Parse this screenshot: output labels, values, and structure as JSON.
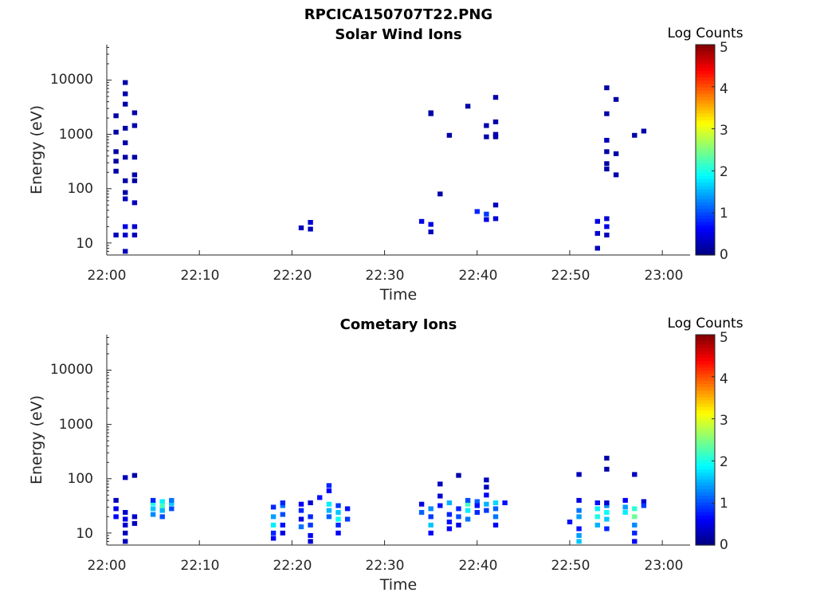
{
  "figure": {
    "title": "RPCICA150707T22.PNG"
  },
  "chart_data": [
    {
      "type": "heatmap",
      "title": "Solar Wind Ions",
      "xlabel": "Time",
      "ylabel": "Energy (eV)",
      "x_ticks": [
        "22:00",
        "22:10",
        "22:20",
        "22:30",
        "22:40",
        "22:50",
        "23:00"
      ],
      "x_range": [
        "22:00",
        "23:03"
      ],
      "y_ticks": [
        "10",
        "100",
        "1000",
        "10000"
      ],
      "y_range": [
        6,
        45000
      ],
      "y_scale": "log",
      "colorbar": {
        "label": "Log Counts",
        "ticks": [
          "0",
          "1",
          "2",
          "3",
          "4",
          "5"
        ],
        "range": [
          0,
          5
        ],
        "colormap": "jet"
      },
      "points": [
        {
          "t": "22:01",
          "e": 14,
          "c": 0.3
        },
        {
          "t": "22:02",
          "e": 20,
          "c": 0.5
        },
        {
          "t": "22:02",
          "e": 14,
          "c": 0.4
        },
        {
          "t": "22:02",
          "e": 7,
          "c": 0.3
        },
        {
          "t": "22:03",
          "e": 20,
          "c": 0.4
        },
        {
          "t": "22:03",
          "e": 14,
          "c": 0.3
        },
        {
          "t": "22:01",
          "e": 1100,
          "c": 0.2
        },
        {
          "t": "22:01",
          "e": 2200,
          "c": 0.2
        },
        {
          "t": "22:01",
          "e": 480,
          "c": 0.2
        },
        {
          "t": "22:01",
          "e": 320,
          "c": 0.2
        },
        {
          "t": "22:01",
          "e": 210,
          "c": 0.2
        },
        {
          "t": "22:02",
          "e": 9000,
          "c": 0.2
        },
        {
          "t": "22:02",
          "e": 3600,
          "c": 0.2
        },
        {
          "t": "22:02",
          "e": 1300,
          "c": 0.2
        },
        {
          "t": "22:02",
          "e": 380,
          "c": 0.2
        },
        {
          "t": "22:02",
          "e": 140,
          "c": 0.2
        },
        {
          "t": "22:02",
          "e": 65,
          "c": 0.3
        },
        {
          "t": "22:02",
          "e": 5600,
          "c": 0.2
        },
        {
          "t": "22:03",
          "e": 1450,
          "c": 0.2
        },
        {
          "t": "22:03",
          "e": 2500,
          "c": 0.2
        },
        {
          "t": "22:03",
          "e": 180,
          "c": 0.2
        },
        {
          "t": "22:03",
          "e": 55,
          "c": 0.3
        },
        {
          "t": "22:03",
          "e": 380,
          "c": 0.2
        },
        {
          "t": "22:03",
          "e": 140,
          "c": 0.2
        },
        {
          "t": "22:02",
          "e": 700,
          "c": 0.2
        },
        {
          "t": "22:02",
          "e": 85,
          "c": 0.2
        },
        {
          "t": "22:21",
          "e": 19,
          "c": 0.3
        },
        {
          "t": "22:22",
          "e": 24,
          "c": 0.4
        },
        {
          "t": "22:22",
          "e": 18,
          "c": 0.3
        },
        {
          "t": "22:34",
          "e": 25,
          "c": 0.5
        },
        {
          "t": "22:35",
          "e": 22,
          "c": 0.5
        },
        {
          "t": "22:35",
          "e": 16,
          "c": 0.3
        },
        {
          "t": "22:35",
          "e": 2500,
          "c": 0.2
        },
        {
          "t": "22:35",
          "e": 2400,
          "c": 0.2
        },
        {
          "t": "22:36",
          "e": 80,
          "c": 0.2
        },
        {
          "t": "22:37",
          "e": 960,
          "c": 0.2
        },
        {
          "t": "22:39",
          "e": 3300,
          "c": 0.2
        },
        {
          "t": "22:40",
          "e": 38,
          "c": 0.8
        },
        {
          "t": "22:41",
          "e": 34,
          "c": 0.9
        },
        {
          "t": "22:41",
          "e": 27,
          "c": 0.5
        },
        {
          "t": "22:42",
          "e": 28,
          "c": 0.4
        },
        {
          "t": "22:42",
          "e": 50,
          "c": 0.3
        },
        {
          "t": "22:41",
          "e": 900,
          "c": 0.2
        },
        {
          "t": "22:41",
          "e": 1450,
          "c": 0.2
        },
        {
          "t": "22:42",
          "e": 4800,
          "c": 0.2
        },
        {
          "t": "22:42",
          "e": 900,
          "c": 0.2
        },
        {
          "t": "22:42",
          "e": 1700,
          "c": 0.2
        },
        {
          "t": "22:42",
          "e": 1000,
          "c": 0.2
        },
        {
          "t": "22:53",
          "e": 25,
          "c": 0.5
        },
        {
          "t": "22:53",
          "e": 15,
          "c": 0.4
        },
        {
          "t": "22:53",
          "e": 8,
          "c": 0.3
        },
        {
          "t": "22:54",
          "e": 28,
          "c": 0.4
        },
        {
          "t": "22:54",
          "e": 20,
          "c": 0.5
        },
        {
          "t": "22:54",
          "e": 14,
          "c": 0.3
        },
        {
          "t": "22:54",
          "e": 7200,
          "c": 0.2
        },
        {
          "t": "22:54",
          "e": 2400,
          "c": 0.2
        },
        {
          "t": "22:55",
          "e": 4400,
          "c": 0.2
        },
        {
          "t": "22:54",
          "e": 780,
          "c": 0.3
        },
        {
          "t": "22:54",
          "e": 480,
          "c": 0.2
        },
        {
          "t": "22:55",
          "e": 440,
          "c": 0.2
        },
        {
          "t": "22:54",
          "e": 290,
          "c": 0.2
        },
        {
          "t": "22:54",
          "e": 230,
          "c": 0.2
        },
        {
          "t": "22:55",
          "e": 180,
          "c": 0.2
        },
        {
          "t": "22:57",
          "e": 960,
          "c": 0.2
        },
        {
          "t": "22:58",
          "e": 1150,
          "c": 0.2
        }
      ]
    },
    {
      "type": "heatmap",
      "title": "Cometary Ions",
      "xlabel": "Time",
      "ylabel": "Energy (eV)",
      "x_ticks": [
        "22:00",
        "22:10",
        "22:20",
        "22:30",
        "22:40",
        "22:50",
        "23:00"
      ],
      "x_range": [
        "22:00",
        "23:03"
      ],
      "y_ticks": [
        "10",
        "100",
        "1000",
        "10000"
      ],
      "y_range": [
        6,
        45000
      ],
      "y_scale": "log",
      "colorbar": {
        "label": "Log Counts",
        "ticks": [
          "0",
          "1",
          "2",
          "3",
          "4",
          "5"
        ],
        "range": [
          0,
          5
        ],
        "colormap": "jet"
      },
      "points": [
        {
          "t": "22:01",
          "e": 40,
          "c": 0.3
        },
        {
          "t": "22:01",
          "e": 28,
          "c": 0.5
        },
        {
          "t": "22:01",
          "e": 20,
          "c": 0.6
        },
        {
          "t": "22:02",
          "e": 24,
          "c": 0.4
        },
        {
          "t": "22:02",
          "e": 18,
          "c": 0.5
        },
        {
          "t": "22:02",
          "e": 14,
          "c": 0.4
        },
        {
          "t": "22:02",
          "e": 10,
          "c": 0.3
        },
        {
          "t": "22:03",
          "e": 20,
          "c": 0.4
        },
        {
          "t": "22:03",
          "e": 15,
          "c": 0.3
        },
        {
          "t": "22:02",
          "e": 7,
          "c": 0.3
        },
        {
          "t": "22:02",
          "e": 105,
          "c": 0.3
        },
        {
          "t": "22:03",
          "e": 115,
          "c": 0.2
        },
        {
          "t": "22:05",
          "e": 35,
          "c": 2.0
        },
        {
          "t": "22:05",
          "e": 28,
          "c": 1.6
        },
        {
          "t": "22:05",
          "e": 22,
          "c": 1.3
        },
        {
          "t": "22:06",
          "e": 38,
          "c": 1.8
        },
        {
          "t": "22:06",
          "e": 32,
          "c": 2.2
        },
        {
          "t": "22:06",
          "e": 26,
          "c": 1.5
        },
        {
          "t": "22:06",
          "e": 20,
          "c": 1.0
        },
        {
          "t": "22:07",
          "e": 35,
          "c": 1.6
        },
        {
          "t": "22:07",
          "e": 40,
          "c": 1.2
        },
        {
          "t": "22:05",
          "e": 40,
          "c": 0.8
        },
        {
          "t": "22:07",
          "e": 28,
          "c": 1.0
        },
        {
          "t": "22:18",
          "e": 30,
          "c": 0.8
        },
        {
          "t": "22:18",
          "e": 20,
          "c": 1.4
        },
        {
          "t": "22:18",
          "e": 14,
          "c": 1.8
        },
        {
          "t": "22:18",
          "e": 10,
          "c": 0.8
        },
        {
          "t": "22:18",
          "e": 8,
          "c": 0.6
        },
        {
          "t": "22:19",
          "e": 32,
          "c": 1.2
        },
        {
          "t": "22:19",
          "e": 22,
          "c": 1.0
        },
        {
          "t": "22:19",
          "e": 14,
          "c": 0.7
        },
        {
          "t": "22:19",
          "e": 10,
          "c": 0.5
        },
        {
          "t": "22:19",
          "e": 36,
          "c": 0.8
        },
        {
          "t": "22:21",
          "e": 34,
          "c": 0.6
        },
        {
          "t": "22:21",
          "e": 26,
          "c": 0.8
        },
        {
          "t": "22:21",
          "e": 18,
          "c": 0.5
        },
        {
          "t": "22:21",
          "e": 13,
          "c": 1.2
        },
        {
          "t": "22:22",
          "e": 20,
          "c": 0.8
        },
        {
          "t": "22:22",
          "e": 14,
          "c": 0.9
        },
        {
          "t": "22:22",
          "e": 9,
          "c": 0.6
        },
        {
          "t": "22:22",
          "e": 7,
          "c": 0.4
        },
        {
          "t": "22:22",
          "e": 36,
          "c": 0.4
        },
        {
          "t": "22:23",
          "e": 45,
          "c": 0.7
        },
        {
          "t": "22:24",
          "e": 75,
          "c": 0.8
        },
        {
          "t": "22:24",
          "e": 60,
          "c": 0.6
        },
        {
          "t": "22:24",
          "e": 34,
          "c": 1.8
        },
        {
          "t": "22:24",
          "e": 26,
          "c": 1.5
        },
        {
          "t": "22:24",
          "e": 20,
          "c": 1.1
        },
        {
          "t": "22:25",
          "e": 32,
          "c": 0.9
        },
        {
          "t": "22:25",
          "e": 24,
          "c": 1.6
        },
        {
          "t": "22:25",
          "e": 18,
          "c": 1.9
        },
        {
          "t": "22:25",
          "e": 14,
          "c": 0.8
        },
        {
          "t": "22:25",
          "e": 10,
          "c": 0.6
        },
        {
          "t": "22:26",
          "e": 28,
          "c": 0.7
        },
        {
          "t": "22:26",
          "e": 18,
          "c": 0.9
        },
        {
          "t": "22:34",
          "e": 34,
          "c": 0.5
        },
        {
          "t": "22:34",
          "e": 24,
          "c": 1.1
        },
        {
          "t": "22:35",
          "e": 28,
          "c": 1.3
        },
        {
          "t": "22:35",
          "e": 20,
          "c": 0.9
        },
        {
          "t": "22:35",
          "e": 14,
          "c": 1.6
        },
        {
          "t": "22:35",
          "e": 10,
          "c": 0.6
        },
        {
          "t": "22:36",
          "e": 80,
          "c": 0.3
        },
        {
          "t": "22:36",
          "e": 48,
          "c": 0.4
        },
        {
          "t": "22:36",
          "e": 32,
          "c": 0.7
        },
        {
          "t": "22:37",
          "e": 36,
          "c": 1.5
        },
        {
          "t": "22:37",
          "e": 22,
          "c": 0.8
        },
        {
          "t": "22:37",
          "e": 16,
          "c": 0.7
        },
        {
          "t": "22:37",
          "e": 12,
          "c": 0.6
        },
        {
          "t": "22:38",
          "e": 28,
          "c": 0.8
        },
        {
          "t": "22:38",
          "e": 20,
          "c": 1.0
        },
        {
          "t": "22:38",
          "e": 14,
          "c": 0.5
        },
        {
          "t": "22:38",
          "e": 115,
          "c": 0.2
        },
        {
          "t": "22:39",
          "e": 34,
          "c": 2.2
        },
        {
          "t": "22:39",
          "e": 26,
          "c": 1.8
        },
        {
          "t": "22:39",
          "e": 18,
          "c": 1.2
        },
        {
          "t": "22:39",
          "e": 40,
          "c": 1.0
        },
        {
          "t": "22:40",
          "e": 38,
          "c": 1.1
        },
        {
          "t": "22:40",
          "e": 32,
          "c": 0.7
        },
        {
          "t": "22:41",
          "e": 34,
          "c": 1.5
        },
        {
          "t": "22:41",
          "e": 26,
          "c": 0.9
        },
        {
          "t": "22:41",
          "e": 50,
          "c": 0.6
        },
        {
          "t": "22:41",
          "e": 95,
          "c": 0.3
        },
        {
          "t": "22:41",
          "e": 70,
          "c": 0.3
        },
        {
          "t": "22:42",
          "e": 36,
          "c": 1.7
        },
        {
          "t": "22:42",
          "e": 28,
          "c": 1.1
        },
        {
          "t": "22:42",
          "e": 20,
          "c": 1.2
        },
        {
          "t": "22:42",
          "e": 14,
          "c": 0.6
        },
        {
          "t": "22:43",
          "e": 36,
          "c": 0.7
        },
        {
          "t": "22:40",
          "e": 24,
          "c": 0.8
        },
        {
          "t": "22:50",
          "e": 16,
          "c": 0.7
        },
        {
          "t": "22:51",
          "e": 12,
          "c": 0.7
        },
        {
          "t": "22:51",
          "e": 20,
          "c": 1.4
        },
        {
          "t": "22:51",
          "e": 26,
          "c": 1.2
        },
        {
          "t": "22:51",
          "e": 40,
          "c": 0.5
        },
        {
          "t": "22:51",
          "e": 9,
          "c": 1.4
        },
        {
          "t": "22:51",
          "e": 7,
          "c": 1.6
        },
        {
          "t": "22:51",
          "e": 120,
          "c": 0.3
        },
        {
          "t": "22:53",
          "e": 36,
          "c": 0.7
        },
        {
          "t": "22:53",
          "e": 28,
          "c": 1.8
        },
        {
          "t": "22:53",
          "e": 20,
          "c": 2.0
        },
        {
          "t": "22:53",
          "e": 14,
          "c": 1.5
        },
        {
          "t": "22:54",
          "e": 32,
          "c": 1.3
        },
        {
          "t": "22:54",
          "e": 24,
          "c": 1.9
        },
        {
          "t": "22:54",
          "e": 18,
          "c": 1.6
        },
        {
          "t": "22:54",
          "e": 12,
          "c": 0.8
        },
        {
          "t": "22:54",
          "e": 36,
          "c": 0.4
        },
        {
          "t": "22:54",
          "e": 150,
          "c": 0.2
        },
        {
          "t": "22:54",
          "e": 240,
          "c": 0.2
        },
        {
          "t": "22:56",
          "e": 30,
          "c": 1.4
        },
        {
          "t": "22:56",
          "e": 24,
          "c": 1.8
        },
        {
          "t": "22:57",
          "e": 28,
          "c": 2.1
        },
        {
          "t": "22:57",
          "e": 20,
          "c": 2.4
        },
        {
          "t": "22:57",
          "e": 14,
          "c": 1.3
        },
        {
          "t": "22:57",
          "e": 10,
          "c": 0.8
        },
        {
          "t": "22:57",
          "e": 7,
          "c": 0.6
        },
        {
          "t": "22:57",
          "e": 120,
          "c": 0.3
        },
        {
          "t": "22:58",
          "e": 38,
          "c": 0.4
        },
        {
          "t": "22:58",
          "e": 32,
          "c": 0.9
        },
        {
          "t": "22:56",
          "e": 40,
          "c": 0.6
        }
      ]
    }
  ]
}
